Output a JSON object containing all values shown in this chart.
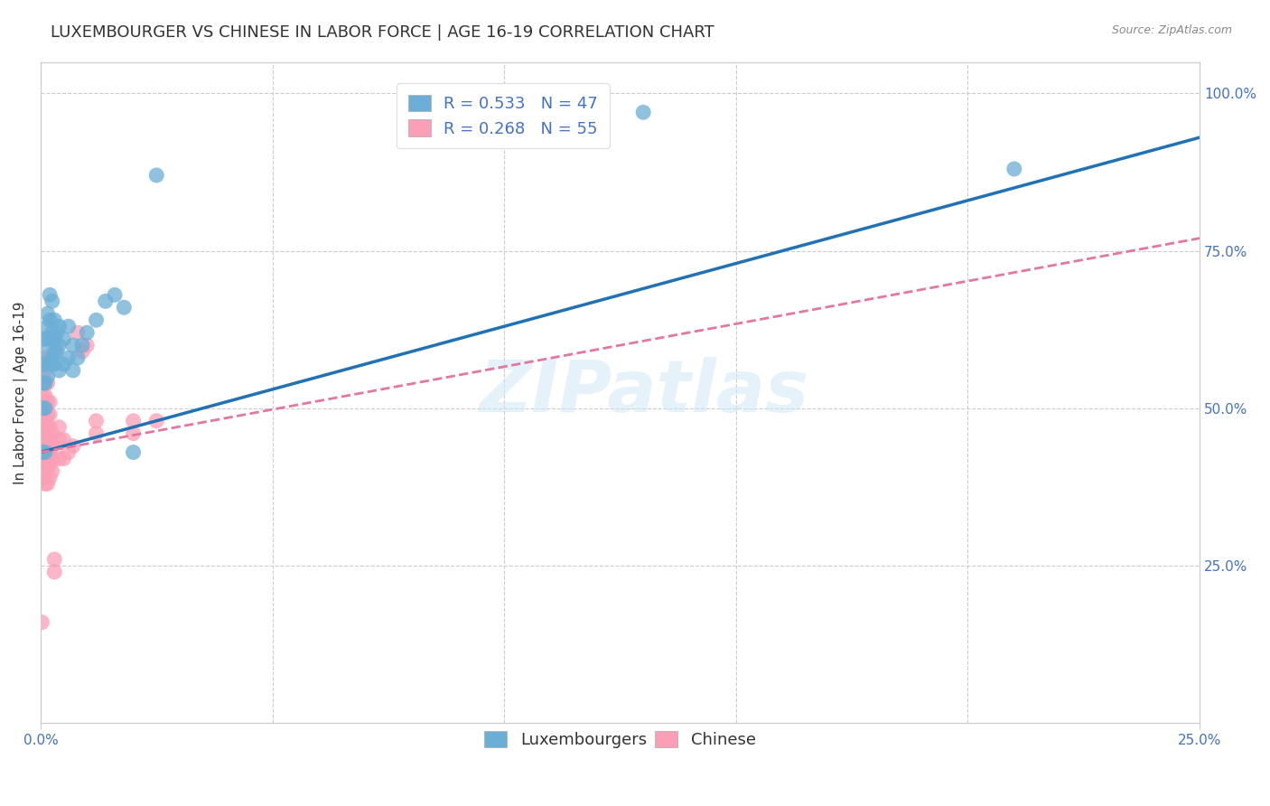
{
  "title": "LUXEMBOURGER VS CHINESE IN LABOR FORCE | AGE 16-19 CORRELATION CHART",
  "source": "Source: ZipAtlas.com",
  "ylabel": "In Labor Force | Age 16-19",
  "right_yticks": [
    "100.0%",
    "75.0%",
    "50.0%",
    "25.0%"
  ],
  "right_ytick_vals": [
    1.0,
    0.75,
    0.5,
    0.25
  ],
  "legend_lux": "R = 0.533   N = 47",
  "legend_chi": "R = 0.268   N = 55",
  "watermark": "ZIPatlas",
  "lux_color": "#6baed6",
  "chi_color": "#fa9fb5",
  "lux_line_color": "#2171b5",
  "chi_line_color": "#e377a0",
  "lux_scatter": [
    [
      0.0005,
      0.43
    ],
    [
      0.0005,
      0.5
    ],
    [
      0.0005,
      0.54
    ],
    [
      0.0005,
      0.57
    ],
    [
      0.0005,
      0.61
    ],
    [
      0.001,
      0.43
    ],
    [
      0.001,
      0.5
    ],
    [
      0.001,
      0.54
    ],
    [
      0.001,
      0.57
    ],
    [
      0.001,
      0.61
    ],
    [
      0.0015,
      0.55
    ],
    [
      0.0015,
      0.59
    ],
    [
      0.0015,
      0.63
    ],
    [
      0.0015,
      0.65
    ],
    [
      0.002,
      0.57
    ],
    [
      0.002,
      0.61
    ],
    [
      0.002,
      0.64
    ],
    [
      0.002,
      0.68
    ],
    [
      0.0025,
      0.58
    ],
    [
      0.0025,
      0.62
    ],
    [
      0.0025,
      0.67
    ],
    [
      0.003,
      0.57
    ],
    [
      0.003,
      0.59
    ],
    [
      0.003,
      0.61
    ],
    [
      0.003,
      0.64
    ],
    [
      0.0035,
      0.59
    ],
    [
      0.0035,
      0.62
    ],
    [
      0.004,
      0.56
    ],
    [
      0.004,
      0.6
    ],
    [
      0.004,
      0.63
    ],
    [
      0.005,
      0.57
    ],
    [
      0.005,
      0.61
    ],
    [
      0.006,
      0.58
    ],
    [
      0.006,
      0.63
    ],
    [
      0.007,
      0.56
    ],
    [
      0.007,
      0.6
    ],
    [
      0.008,
      0.58
    ],
    [
      0.009,
      0.6
    ],
    [
      0.01,
      0.62
    ],
    [
      0.012,
      0.64
    ],
    [
      0.014,
      0.67
    ],
    [
      0.016,
      0.68
    ],
    [
      0.018,
      0.66
    ],
    [
      0.02,
      0.43
    ],
    [
      0.025,
      0.87
    ],
    [
      0.13,
      0.97
    ],
    [
      0.21,
      0.88
    ]
  ],
  "chi_scatter": [
    [
      0.0003,
      0.16
    ],
    [
      0.0005,
      0.39
    ],
    [
      0.0005,
      0.42
    ],
    [
      0.0005,
      0.44
    ],
    [
      0.0005,
      0.46
    ],
    [
      0.0005,
      0.48
    ],
    [
      0.0005,
      0.5
    ],
    [
      0.0005,
      0.52
    ],
    [
      0.001,
      0.38
    ],
    [
      0.001,
      0.4
    ],
    [
      0.001,
      0.42
    ],
    [
      0.001,
      0.44
    ],
    [
      0.001,
      0.46
    ],
    [
      0.001,
      0.48
    ],
    [
      0.001,
      0.5
    ],
    [
      0.001,
      0.52
    ],
    [
      0.001,
      0.54
    ],
    [
      0.001,
      0.56
    ],
    [
      0.001,
      0.58
    ],
    [
      0.0015,
      0.38
    ],
    [
      0.0015,
      0.41
    ],
    [
      0.0015,
      0.43
    ],
    [
      0.0015,
      0.45
    ],
    [
      0.0015,
      0.47
    ],
    [
      0.0015,
      0.49
    ],
    [
      0.0015,
      0.51
    ],
    [
      0.0015,
      0.54
    ],
    [
      0.002,
      0.39
    ],
    [
      0.002,
      0.41
    ],
    [
      0.002,
      0.43
    ],
    [
      0.002,
      0.45
    ],
    [
      0.002,
      0.47
    ],
    [
      0.002,
      0.49
    ],
    [
      0.002,
      0.51
    ],
    [
      0.0025,
      0.4
    ],
    [
      0.0025,
      0.42
    ],
    [
      0.0025,
      0.44
    ],
    [
      0.0025,
      0.46
    ],
    [
      0.003,
      0.24
    ],
    [
      0.003,
      0.26
    ],
    [
      0.004,
      0.42
    ],
    [
      0.004,
      0.45
    ],
    [
      0.004,
      0.47
    ],
    [
      0.005,
      0.42
    ],
    [
      0.005,
      0.45
    ],
    [
      0.006,
      0.43
    ],
    [
      0.007,
      0.44
    ],
    [
      0.008,
      0.62
    ],
    [
      0.009,
      0.59
    ],
    [
      0.01,
      0.6
    ],
    [
      0.012,
      0.46
    ],
    [
      0.012,
      0.48
    ],
    [
      0.02,
      0.46
    ],
    [
      0.02,
      0.48
    ],
    [
      0.025,
      0.48
    ]
  ],
  "lux_line": {
    "x0": 0.0,
    "y0": 0.43,
    "x1": 0.25,
    "y1": 0.93
  },
  "chi_line": {
    "x0": 0.0,
    "y0": 0.43,
    "x1": 0.25,
    "y1": 0.77
  },
  "xlim": [
    0.0,
    0.25
  ],
  "ylim": [
    0.0,
    1.05
  ],
  "grid_color": "#cccccc",
  "background_color": "#ffffff",
  "title_fontsize": 13,
  "axis_label_fontsize": 11,
  "tick_fontsize": 11,
  "legend_fontsize": 13
}
